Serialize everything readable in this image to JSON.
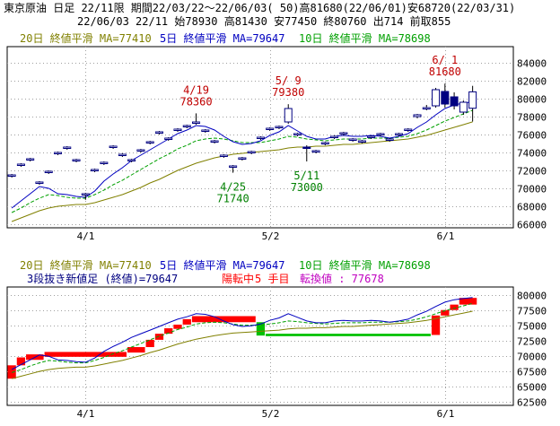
{
  "header": {
    "line1": "東京原油 日足 22/11限 期間22/03/22～22/06/03( 50)高81680(22/06/01)安68720(22/03/31)",
    "line2": "22/06/03 22/11 始78930 高81430 安77450 終80760 出714 前取855"
  },
  "ma_legend_top": [
    {
      "label": "20日 終値平滑 MA=77410",
      "color": "#808000"
    },
    {
      "label": "5日 終値平滑 MA=79647",
      "color": "#0000c0"
    },
    {
      "label": "10日 終値平滑 MA=78698",
      "color": "#00a000"
    }
  ],
  "ma_legend_bottom": [
    {
      "label": "20日 終値平滑 MA=77410",
      "color": "#808000"
    },
    {
      "label": "5日 終値平滑 MA=79647",
      "color": "#0000c0"
    },
    {
      "label": "10日 終値平滑 MA=78698",
      "color": "#00a000"
    }
  ],
  "bottom_info": {
    "prefix": "3段抜き新値足 (終値)=79647",
    "state": "陽転中",
    "count": "5 手目",
    "turn": "転換値 : 77678",
    "prefix_color": "#000080",
    "state_color": "#ff0000",
    "turn_color": "#c000c0"
  },
  "chart_data": [
    {
      "type": "candlestick",
      "y_ticks": [
        66000,
        68000,
        70000,
        72000,
        74000,
        76000,
        78000,
        80000,
        82000,
        84000
      ],
      "ylim": [
        65600,
        85800
      ],
      "x_labels": [
        {
          "label": "4/1",
          "index": 8
        },
        {
          "label": "5/2",
          "index": 28
        },
        {
          "label": "6/1",
          "index": 47
        }
      ],
      "annotations": [
        {
          "date": "4/19",
          "value": "78360",
          "index": 20,
          "kind": "high"
        },
        {
          "date": "5/ 9",
          "value": "79380",
          "index": 30,
          "kind": "high"
        },
        {
          "date": "6/ 1",
          "value": "81680",
          "index": 47,
          "kind": "high"
        },
        {
          "date": "4/25",
          "value": "71740",
          "index": 24,
          "kind": "low"
        },
        {
          "date": "5/11",
          "value": "73000",
          "index": 32,
          "kind": "low"
        }
      ],
      "ohlc": [
        [
          71400,
          71600,
          71200,
          71500
        ],
        [
          72600,
          72800,
          72400,
          72700
        ],
        [
          73200,
          73400,
          73000,
          73300
        ],
        [
          70600,
          70800,
          70400,
          70700
        ],
        [
          71800,
          72000,
          71600,
          71900
        ],
        [
          73900,
          74100,
          73700,
          74000
        ],
        [
          74500,
          74700,
          74300,
          74600
        ],
        [
          73100,
          73300,
          72900,
          73200
        ],
        [
          69300,
          69500,
          68720,
          69400
        ],
        [
          72000,
          72200,
          71800,
          72100
        ],
        [
          72800,
          73000,
          72600,
          72900
        ],
        [
          74600,
          74800,
          74400,
          74700
        ],
        [
          73700,
          73900,
          73500,
          73800
        ],
        [
          73100,
          73300,
          72900,
          73200
        ],
        [
          74200,
          74400,
          74000,
          74300
        ],
        [
          75100,
          75300,
          74900,
          75200
        ],
        [
          76200,
          76400,
          76000,
          76300
        ],
        [
          75500,
          75700,
          75300,
          75600
        ],
        [
          76500,
          76700,
          76300,
          76600
        ],
        [
          76900,
          77100,
          76700,
          77000
        ],
        [
          77300,
          78360,
          77100,
          77400
        ],
        [
          76400,
          76600,
          76200,
          76500
        ],
        [
          75200,
          75400,
          75000,
          75300
        ],
        [
          73600,
          73800,
          73400,
          73700
        ],
        [
          72400,
          72600,
          71740,
          72500
        ],
        [
          73300,
          73500,
          73100,
          73400
        ],
        [
          74000,
          74200,
          73800,
          74100
        ],
        [
          75600,
          75800,
          75400,
          75700
        ],
        [
          76600,
          76800,
          76400,
          76700
        ],
        [
          76800,
          77000,
          76600,
          76900
        ],
        [
          77400,
          79380,
          77200,
          78900
        ],
        [
          76000,
          76200,
          75800,
          76100
        ],
        [
          74600,
          74800,
          73000,
          74500
        ],
        [
          74100,
          74300,
          73900,
          74200
        ],
        [
          75000,
          75200,
          74800,
          75100
        ],
        [
          75700,
          75900,
          75500,
          75800
        ],
        [
          76100,
          76300,
          75900,
          76200
        ],
        [
          75400,
          75600,
          75200,
          75500
        ],
        [
          75200,
          75400,
          75000,
          75300
        ],
        [
          75700,
          75900,
          75500,
          75800
        ],
        [
          76000,
          76200,
          75800,
          76100
        ],
        [
          75400,
          75600,
          75200,
          75500
        ],
        [
          76000,
          76200,
          75800,
          76100
        ],
        [
          76500,
          76700,
          76300,
          76600
        ],
        [
          78000,
          78300,
          77800,
          78200
        ],
        [
          78900,
          79300,
          78700,
          79000
        ],
        [
          79200,
          81200,
          79000,
          81000
        ],
        [
          80800,
          81680,
          79000,
          79400
        ],
        [
          80200,
          80700,
          78800,
          79200
        ],
        [
          78500,
          79800,
          78200,
          79600
        ],
        [
          78930,
          81430,
          77450,
          80760
        ]
      ],
      "series": [
        {
          "name": "5日",
          "color": "#0000c0",
          "values": [
            67800,
            68600,
            69400,
            70200,
            70000,
            69400,
            69300,
            69100,
            69000,
            69700,
            70800,
            71600,
            72300,
            73100,
            73700,
            74300,
            74900,
            75500,
            76100,
            76500,
            77000,
            76900,
            76500,
            75800,
            75200,
            74900,
            75000,
            75300,
            75900,
            76300,
            77000,
            76400,
            75800,
            75500,
            75500,
            75800,
            75900,
            75800,
            75800,
            75900,
            75800,
            75600,
            75800,
            76100,
            76800,
            77400,
            78200,
            78900,
            79300,
            79500,
            79650
          ]
        },
        {
          "name": "10日",
          "color": "#00a000",
          "values": [
            67300,
            67800,
            68400,
            68900,
            69300,
            69200,
            69000,
            68900,
            68900,
            69300,
            69800,
            70400,
            70900,
            71500,
            72100,
            72700,
            73300,
            73800,
            74400,
            74800,
            75300,
            75500,
            75600,
            75500,
            75300,
            75100,
            75100,
            75100,
            75300,
            75500,
            75800,
            75700,
            75500,
            75400,
            75300,
            75400,
            75500,
            75500,
            75500,
            75600,
            75600,
            75600,
            75700,
            75800,
            76100,
            76500,
            77000,
            77500,
            77900,
            78300,
            78700
          ]
        },
        {
          "name": "20日",
          "color": "#808000",
          "values": [
            66300,
            66700,
            67100,
            67500,
            67800,
            68000,
            68100,
            68200,
            68200,
            68400,
            68700,
            69000,
            69300,
            69700,
            70100,
            70600,
            71000,
            71500,
            72000,
            72400,
            72800,
            73100,
            73400,
            73600,
            73800,
            73900,
            74000,
            74100,
            74200,
            74300,
            74500,
            74600,
            74600,
            74700,
            74700,
            74800,
            74900,
            74900,
            75000,
            75100,
            75200,
            75300,
            75400,
            75500,
            75700,
            75900,
            76200,
            76500,
            76800,
            77100,
            77410
          ]
        }
      ]
    },
    {
      "type": "new-price-bars",
      "y_ticks": [
        62500,
        65000,
        67500,
        70000,
        72500,
        75000,
        77500,
        80000
      ],
      "ylim": [
        61900,
        81400
      ],
      "x_labels": [
        {
          "label": "4/1",
          "index": 8
        },
        {
          "label": "5/2",
          "index": 28
        },
        {
          "label": "6/1",
          "index": 47
        }
      ],
      "bars": [
        {
          "i0": 0,
          "i1": 1,
          "lo": 66300,
          "hi": 68500,
          "color": "#ff0000"
        },
        {
          "i0": 1,
          "i1": 2,
          "lo": 68500,
          "hi": 69800,
          "color": "#ff0000"
        },
        {
          "i0": 2,
          "i1": 4,
          "lo": 69400,
          "hi": 70300,
          "color": "#ff0000"
        },
        {
          "i0": 4,
          "i1": 13,
          "lo": 69900,
          "hi": 70700,
          "color": "#ff0000"
        },
        {
          "i0": 13,
          "i1": 15,
          "lo": 70600,
          "hi": 71500,
          "color": "#ff0000"
        },
        {
          "i0": 15,
          "i1": 16,
          "lo": 71500,
          "hi": 72700,
          "color": "#ff0000"
        },
        {
          "i0": 16,
          "i1": 17,
          "lo": 72700,
          "hi": 73700,
          "color": "#ff0000"
        },
        {
          "i0": 17,
          "i1": 18,
          "lo": 73700,
          "hi": 74600,
          "color": "#ff0000"
        },
        {
          "i0": 18,
          "i1": 19,
          "lo": 74500,
          "hi": 75200,
          "color": "#ff0000"
        },
        {
          "i0": 19,
          "i1": 20,
          "lo": 75200,
          "hi": 76100,
          "color": "#ff0000"
        },
        {
          "i0": 20,
          "i1": 27,
          "lo": 75600,
          "hi": 76600,
          "color": "#ff0000"
        },
        {
          "i0": 27,
          "i1": 28,
          "lo": 73400,
          "hi": 75600,
          "color": "#00c000"
        },
        {
          "i0": 28,
          "i1": 46,
          "lo": 73300,
          "hi": 73700,
          "color": "#00c000"
        },
        {
          "i0": 46,
          "i1": 47,
          "lo": 73500,
          "hi": 76700,
          "color": "#ff0000"
        },
        {
          "i0": 47,
          "i1": 48,
          "lo": 76700,
          "hi": 77600,
          "color": "#ff0000"
        },
        {
          "i0": 48,
          "i1": 49,
          "lo": 77600,
          "hi": 78500,
          "color": "#ff0000"
        },
        {
          "i0": 49,
          "i1": 51,
          "lo": 78500,
          "hi": 79600,
          "color": "#ff0000"
        }
      ],
      "series": [
        {
          "name": "5日",
          "color": "#0000c0",
          "values": [
            67800,
            68600,
            69400,
            70200,
            70000,
            69400,
            69300,
            69100,
            69000,
            69700,
            70800,
            71600,
            72300,
            73100,
            73700,
            74300,
            74900,
            75500,
            76100,
            76500,
            77000,
            76900,
            76500,
            75800,
            75200,
            74900,
            75000,
            75300,
            75900,
            76300,
            77000,
            76400,
            75800,
            75500,
            75500,
            75800,
            75900,
            75800,
            75800,
            75900,
            75800,
            75600,
            75800,
            76100,
            76800,
            77400,
            78200,
            78900,
            79300,
            79500,
            79650
          ]
        },
        {
          "name": "10日",
          "color": "#00a000",
          "values": [
            67300,
            67800,
            68400,
            68900,
            69300,
            69200,
            69000,
            68900,
            68900,
            69300,
            69800,
            70400,
            70900,
            71500,
            72100,
            72700,
            73300,
            73800,
            74400,
            74800,
            75300,
            75500,
            75600,
            75500,
            75300,
            75100,
            75100,
            75100,
            75300,
            75500,
            75800,
            75700,
            75500,
            75400,
            75300,
            75400,
            75500,
            75500,
            75500,
            75600,
            75600,
            75600,
            75700,
            75800,
            76100,
            76500,
            77000,
            77500,
            77900,
            78300,
            78700
          ]
        },
        {
          "name": "20日",
          "color": "#808000",
          "values": [
            66300,
            66700,
            67100,
            67500,
            67800,
            68000,
            68100,
            68200,
            68200,
            68400,
            68700,
            69000,
            69300,
            69700,
            70100,
            70600,
            71000,
            71500,
            72000,
            72400,
            72800,
            73100,
            73400,
            73600,
            73800,
            73900,
            74000,
            74100,
            74200,
            74300,
            74500,
            74600,
            74600,
            74700,
            74700,
            74800,
            74900,
            74900,
            75000,
            75100,
            75200,
            75300,
            75400,
            75500,
            75700,
            75900,
            76200,
            76500,
            76800,
            77100,
            77410
          ]
        }
      ]
    }
  ]
}
